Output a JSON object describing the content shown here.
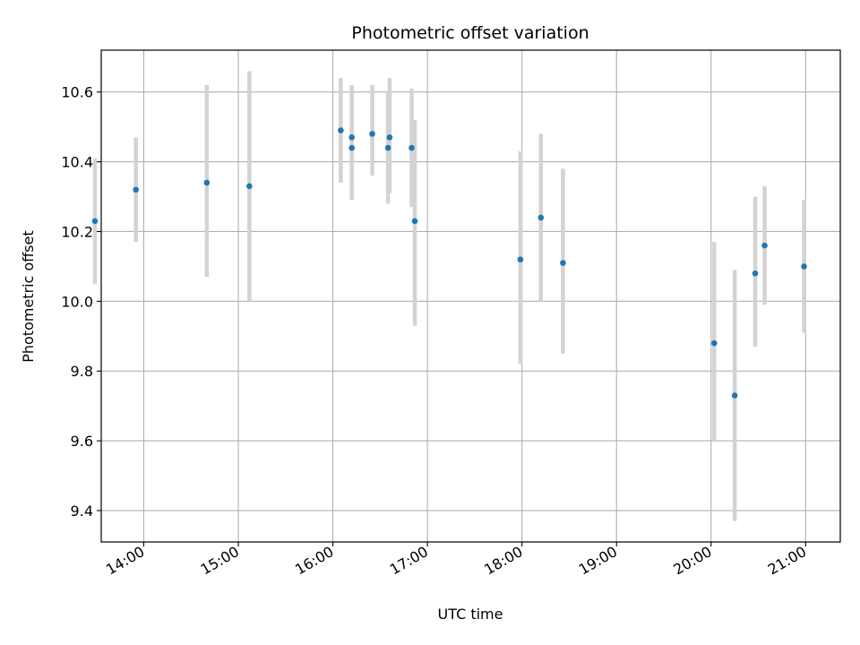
{
  "chart_data": {
    "type": "scatter",
    "title": "Photometric offset variation",
    "xlabel": "UTC time",
    "ylabel": "Photometric offset",
    "x_axis_kind": "time",
    "xlim": [
      "13:33",
      "21:22"
    ],
    "ylim": [
      9.31,
      10.72
    ],
    "x_ticks": [
      "14:00",
      "15:00",
      "16:00",
      "17:00",
      "18:00",
      "19:00",
      "20:00",
      "21:00"
    ],
    "y_ticks": [
      "9.4",
      "9.6",
      "9.8",
      "10.0",
      "10.2",
      "10.4",
      "10.6"
    ],
    "grid": true,
    "legend": "none",
    "marker_color": "#1f77b4",
    "errorbar_color": "#d3d3d3",
    "grid_color": "#b0b0b0",
    "series": [
      {
        "points": [
          {
            "time": "13:29",
            "y": 10.23,
            "yerr_low": 10.05,
            "yerr_high": 10.41
          },
          {
            "time": "13:55",
            "y": 10.32,
            "yerr_low": 10.17,
            "yerr_high": 10.47
          },
          {
            "time": "14:40",
            "y": 10.34,
            "yerr_low": 10.07,
            "yerr_high": 10.62
          },
          {
            "time": "15:07",
            "y": 10.33,
            "yerr_low": 10.0,
            "yerr_high": 10.66
          },
          {
            "time": "16:05",
            "y": 10.49,
            "yerr_low": 10.34,
            "yerr_high": 10.64
          },
          {
            "time": "16:12",
            "y": 10.47,
            "yerr_low": 10.32,
            "yerr_high": 10.62
          },
          {
            "time": "16:12",
            "y": 10.44,
            "yerr_low": 10.29,
            "yerr_high": 10.59
          },
          {
            "time": "16:25",
            "y": 10.48,
            "yerr_low": 10.36,
            "yerr_high": 10.62
          },
          {
            "time": "16:35",
            "y": 10.44,
            "yerr_low": 10.28,
            "yerr_high": 10.6
          },
          {
            "time": "16:36",
            "y": 10.47,
            "yerr_low": 10.31,
            "yerr_high": 10.64
          },
          {
            "time": "16:50",
            "y": 10.44,
            "yerr_low": 10.27,
            "yerr_high": 10.61
          },
          {
            "time": "16:52",
            "y": 10.23,
            "yerr_low": 9.93,
            "yerr_high": 10.52
          },
          {
            "time": "17:59",
            "y": 10.12,
            "yerr_low": 9.82,
            "yerr_high": 10.43
          },
          {
            "time": "18:12",
            "y": 10.24,
            "yerr_low": 10.0,
            "yerr_high": 10.48
          },
          {
            "time": "18:26",
            "y": 10.11,
            "yerr_low": 9.85,
            "yerr_high": 10.38
          },
          {
            "time": "20:02",
            "y": 9.88,
            "yerr_low": 9.6,
            "yerr_high": 10.17
          },
          {
            "time": "20:15",
            "y": 9.73,
            "yerr_low": 9.37,
            "yerr_high": 10.09
          },
          {
            "time": "20:28",
            "y": 10.08,
            "yerr_low": 9.87,
            "yerr_high": 10.3
          },
          {
            "time": "20:34",
            "y": 10.16,
            "yerr_low": 9.99,
            "yerr_high": 10.33
          },
          {
            "time": "20:59",
            "y": 10.1,
            "yerr_low": 9.91,
            "yerr_high": 10.29
          }
        ]
      }
    ]
  }
}
